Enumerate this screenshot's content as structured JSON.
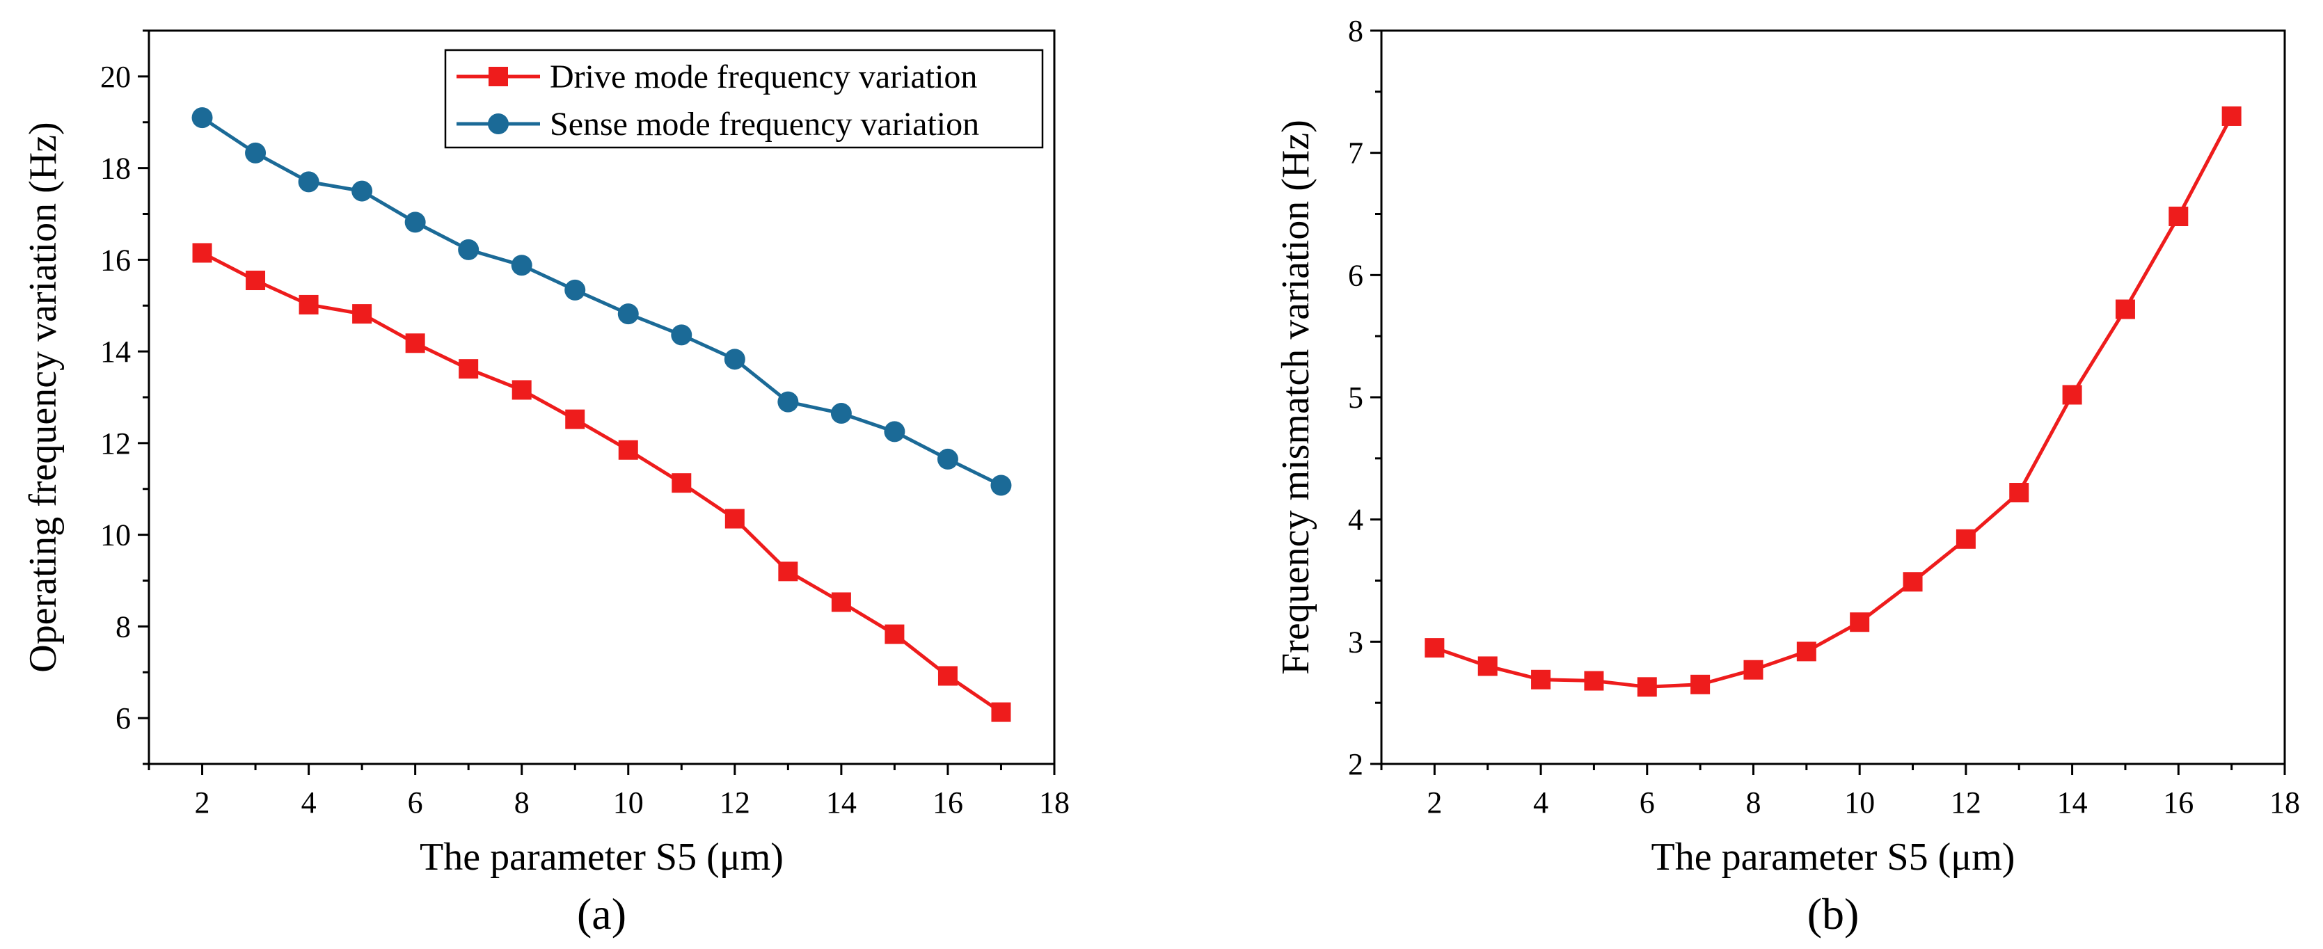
{
  "colors": {
    "drive": "#ee1c1c",
    "sense": "#1b6a97",
    "mismatch": "#ee1c1c",
    "axis": "#000000"
  },
  "chart_data": [
    {
      "type": "line",
      "caption": "(a)",
      "title": "",
      "xlabel": "The parameter S5 (μm)",
      "ylabel": "Operating frequency variation (Hz)",
      "xlim": [
        1,
        18
      ],
      "ylim": [
        5,
        21
      ],
      "xticks": [
        2,
        4,
        6,
        8,
        10,
        12,
        14,
        16,
        18
      ],
      "yticks": [
        6,
        8,
        10,
        12,
        14,
        16,
        18,
        20
      ],
      "xtick_labels": [
        "2",
        "4",
        "6",
        "8",
        "10",
        "12",
        "14",
        "16",
        "18"
      ],
      "ytick_labels": [
        "6",
        "8",
        "10",
        "12",
        "14",
        "16",
        "18",
        "20"
      ],
      "legend_position": "top-right",
      "grid": false,
      "x": [
        2,
        3,
        4,
        5,
        6,
        7,
        8,
        9,
        10,
        11,
        12,
        13,
        14,
        15,
        16,
        17
      ],
      "series": [
        {
          "name": "Drive mode frequency variation",
          "marker": "square",
          "color": "#ee1c1c",
          "values": [
            16.15,
            15.55,
            15.02,
            14.82,
            14.18,
            13.62,
            13.16,
            12.52,
            11.85,
            11.13,
            10.35,
            9.2,
            8.53,
            7.83,
            6.92,
            6.13
          ]
        },
        {
          "name": "Sense mode frequency variation",
          "marker": "circle",
          "color": "#1b6a97",
          "values": [
            19.1,
            18.33,
            17.7,
            17.5,
            16.82,
            16.22,
            15.88,
            15.34,
            14.82,
            14.36,
            13.83,
            12.9,
            12.65,
            12.25,
            11.65,
            11.08
          ]
        }
      ]
    },
    {
      "type": "line",
      "caption": "(b)",
      "title": "",
      "xlabel": "The parameter S5 (μm)",
      "ylabel": "Frequency mismatch variation (Hz)",
      "xlim": [
        1,
        18
      ],
      "ylim": [
        2,
        8
      ],
      "xticks": [
        2,
        4,
        6,
        8,
        10,
        12,
        14,
        16,
        18
      ],
      "yticks": [
        2,
        3,
        4,
        5,
        6,
        7,
        8
      ],
      "xtick_labels": [
        "2",
        "4",
        "6",
        "8",
        "10",
        "12",
        "14",
        "16",
        "18"
      ],
      "ytick_labels": [
        "2",
        "3",
        "4",
        "5",
        "6",
        "7",
        "8"
      ],
      "grid": false,
      "x": [
        2,
        3,
        4,
        5,
        6,
        7,
        8,
        9,
        10,
        11,
        12,
        13,
        14,
        15,
        16,
        17
      ],
      "series": [
        {
          "name": "Frequency mismatch variation",
          "marker": "square",
          "color": "#ee1c1c",
          "values": [
            2.95,
            2.8,
            2.69,
            2.68,
            2.63,
            2.65,
            2.77,
            2.92,
            3.16,
            3.49,
            3.84,
            4.22,
            5.02,
            5.72,
            6.48,
            7.3
          ]
        }
      ]
    }
  ]
}
